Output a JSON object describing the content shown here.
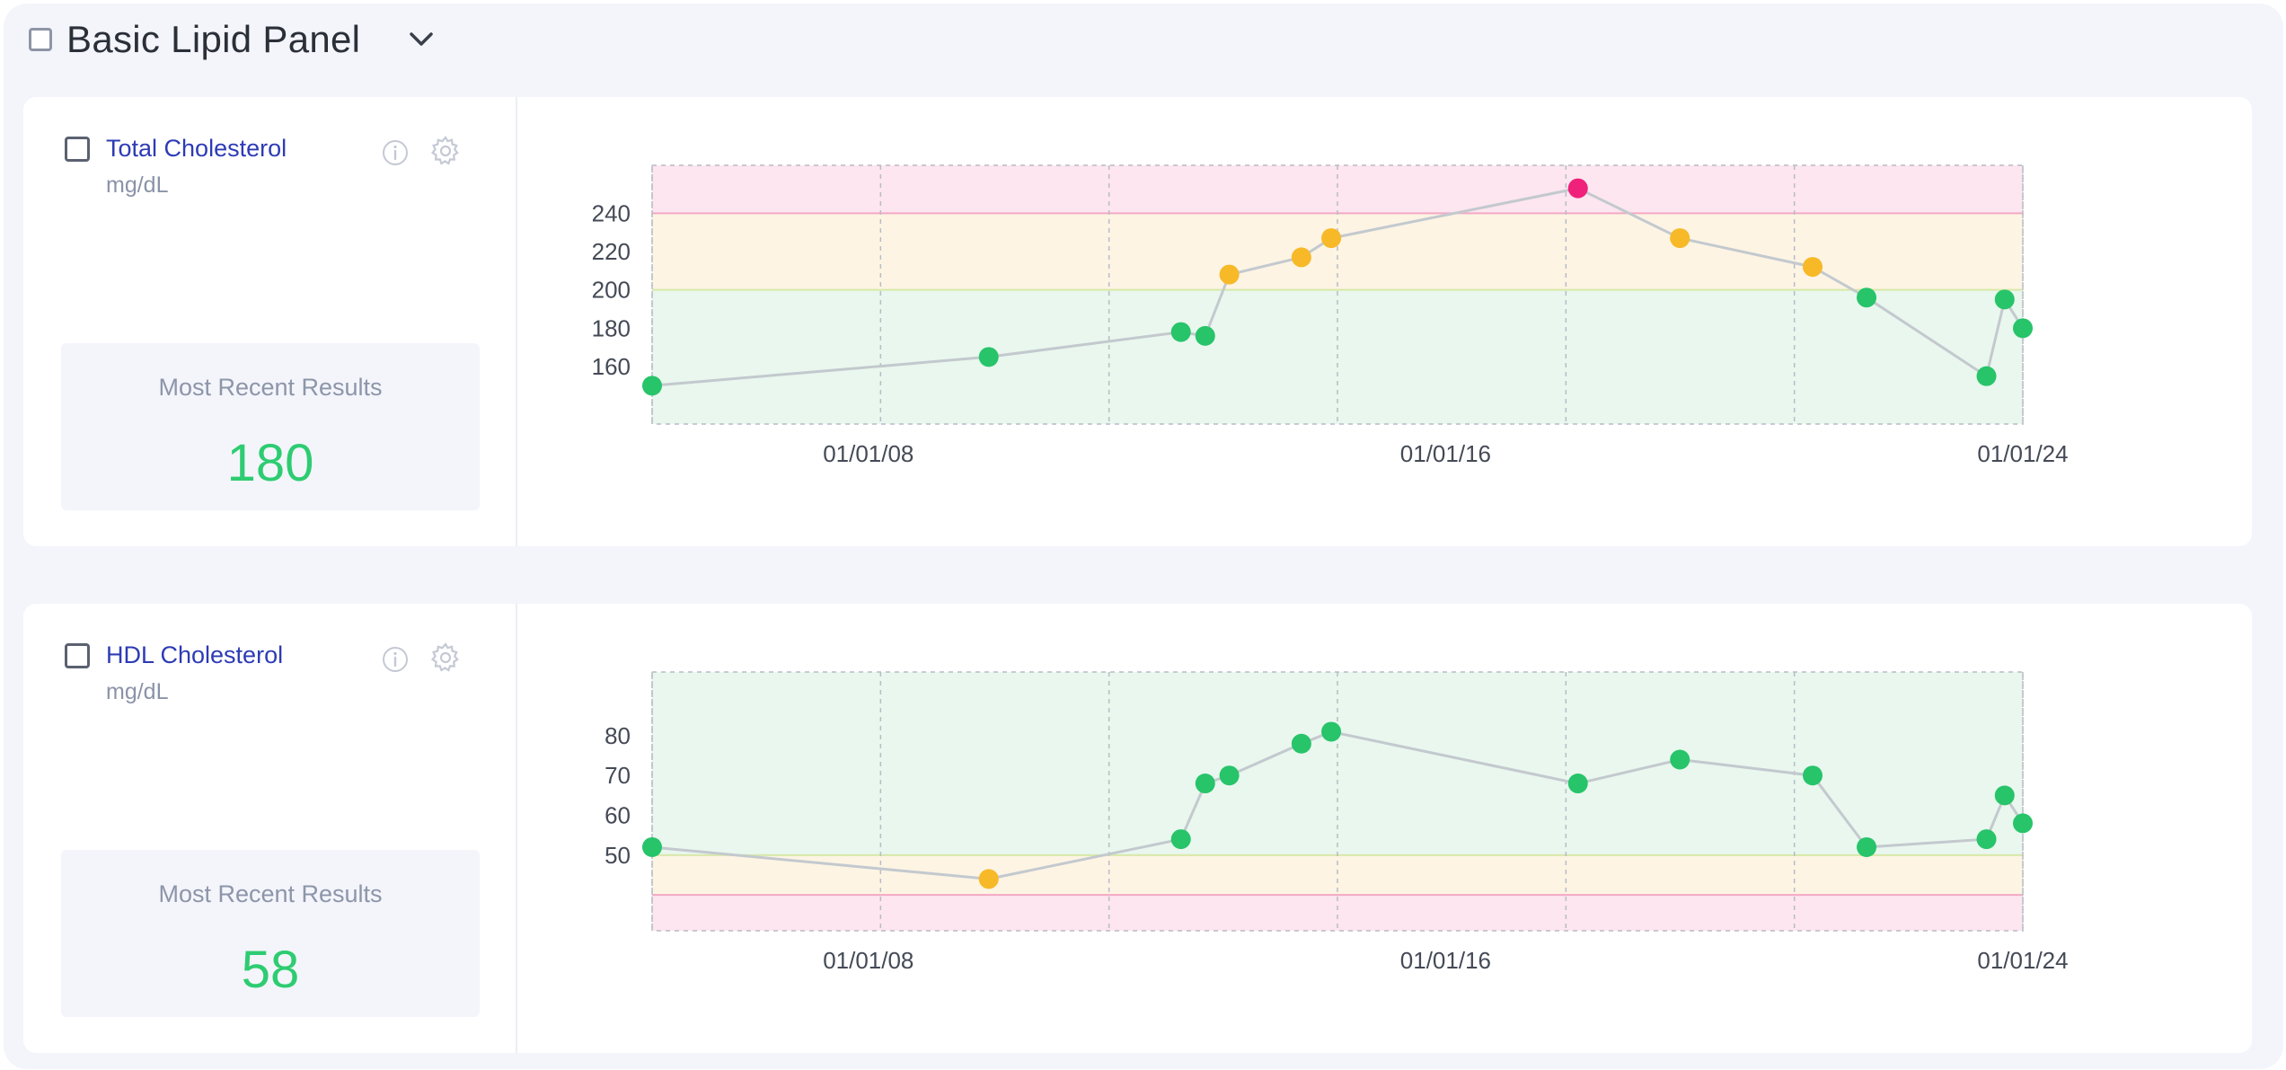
{
  "panel": {
    "title": "Basic Lipid Panel"
  },
  "tests": [
    {
      "name": "Total Cholesterol",
      "unit": "mg/dL",
      "recent_label": "Most Recent Results",
      "recent_value": "180"
    },
    {
      "name": "HDL Cholesterol",
      "unit": "mg/dL",
      "recent_label": "Most Recent Results",
      "recent_value": "58"
    }
  ],
  "chart_data": [
    {
      "type": "line",
      "xlabel": "",
      "ylabel": "",
      "x_ticks": [
        "01/01/08",
        "01/01/16",
        "01/01/24"
      ],
      "x_range": [
        "2005-01-01",
        "2024-01-01"
      ],
      "ylim": [
        130,
        265
      ],
      "y_ticks": [
        160,
        180,
        200,
        220,
        240
      ],
      "grid": true,
      "bands": [
        {
          "from": 130,
          "to": 200,
          "status": "normal",
          "color": "#e9f7ee"
        },
        {
          "from": 200,
          "to": 240,
          "status": "borderline",
          "color": "#fdf4e4"
        },
        {
          "from": 240,
          "to": 265,
          "status": "high",
          "color": "#fde6ef"
        }
      ],
      "points": [
        {
          "x": "2005-01-01",
          "y": 150,
          "status": "normal"
        },
        {
          "x": "2009-09-01",
          "y": 165,
          "status": "normal"
        },
        {
          "x": "2012-05-01",
          "y": 178,
          "status": "normal"
        },
        {
          "x": "2012-09-01",
          "y": 176,
          "status": "normal"
        },
        {
          "x": "2013-01-01",
          "y": 208,
          "status": "borderline"
        },
        {
          "x": "2014-01-01",
          "y": 217,
          "status": "borderline"
        },
        {
          "x": "2014-06-01",
          "y": 227,
          "status": "borderline"
        },
        {
          "x": "2017-11-01",
          "y": 253,
          "status": "high"
        },
        {
          "x": "2019-04-01",
          "y": 227,
          "status": "borderline"
        },
        {
          "x": "2021-02-01",
          "y": 212,
          "status": "borderline"
        },
        {
          "x": "2021-11-01",
          "y": 196,
          "status": "normal"
        },
        {
          "x": "2023-07-01",
          "y": 155,
          "status": "normal"
        },
        {
          "x": "2023-10-01",
          "y": 195,
          "status": "normal"
        },
        {
          "x": "2024-01-01",
          "y": 180,
          "status": "normal"
        }
      ],
      "status_colors": {
        "normal": "#27c46a",
        "borderline": "#f7b928",
        "high": "#f0217a"
      }
    },
    {
      "type": "line",
      "xlabel": "",
      "ylabel": "",
      "x_ticks": [
        "01/01/08",
        "01/01/16",
        "01/01/24"
      ],
      "x_range": [
        "2005-01-01",
        "2024-01-01"
      ],
      "ylim": [
        31,
        96
      ],
      "y_ticks": [
        50,
        60,
        70,
        80
      ],
      "grid": true,
      "bands": [
        {
          "from": 31,
          "to": 40,
          "status": "low",
          "color": "#fde6ef"
        },
        {
          "from": 40,
          "to": 50,
          "status": "borderline",
          "color": "#fdf4e4"
        },
        {
          "from": 50,
          "to": 96,
          "status": "normal",
          "color": "#e9f7ee"
        }
      ],
      "points": [
        {
          "x": "2005-01-01",
          "y": 52,
          "status": "normal"
        },
        {
          "x": "2009-09-01",
          "y": 44,
          "status": "borderline"
        },
        {
          "x": "2012-05-01",
          "y": 54,
          "status": "normal"
        },
        {
          "x": "2012-09-01",
          "y": 68,
          "status": "normal"
        },
        {
          "x": "2013-01-01",
          "y": 70,
          "status": "normal"
        },
        {
          "x": "2014-01-01",
          "y": 78,
          "status": "normal"
        },
        {
          "x": "2014-06-01",
          "y": 81,
          "status": "normal"
        },
        {
          "x": "2017-11-01",
          "y": 68,
          "status": "normal"
        },
        {
          "x": "2019-04-01",
          "y": 74,
          "status": "normal"
        },
        {
          "x": "2021-02-01",
          "y": 70,
          "status": "normal"
        },
        {
          "x": "2021-11-01",
          "y": 52,
          "status": "normal"
        },
        {
          "x": "2023-07-01",
          "y": 54,
          "status": "normal"
        },
        {
          "x": "2023-10-01",
          "y": 65,
          "status": "normal"
        },
        {
          "x": "2024-01-01",
          "y": 58,
          "status": "normal"
        }
      ],
      "status_colors": {
        "normal": "#27c46a",
        "borderline": "#f7b928",
        "low": "#f0217a"
      }
    }
  ]
}
